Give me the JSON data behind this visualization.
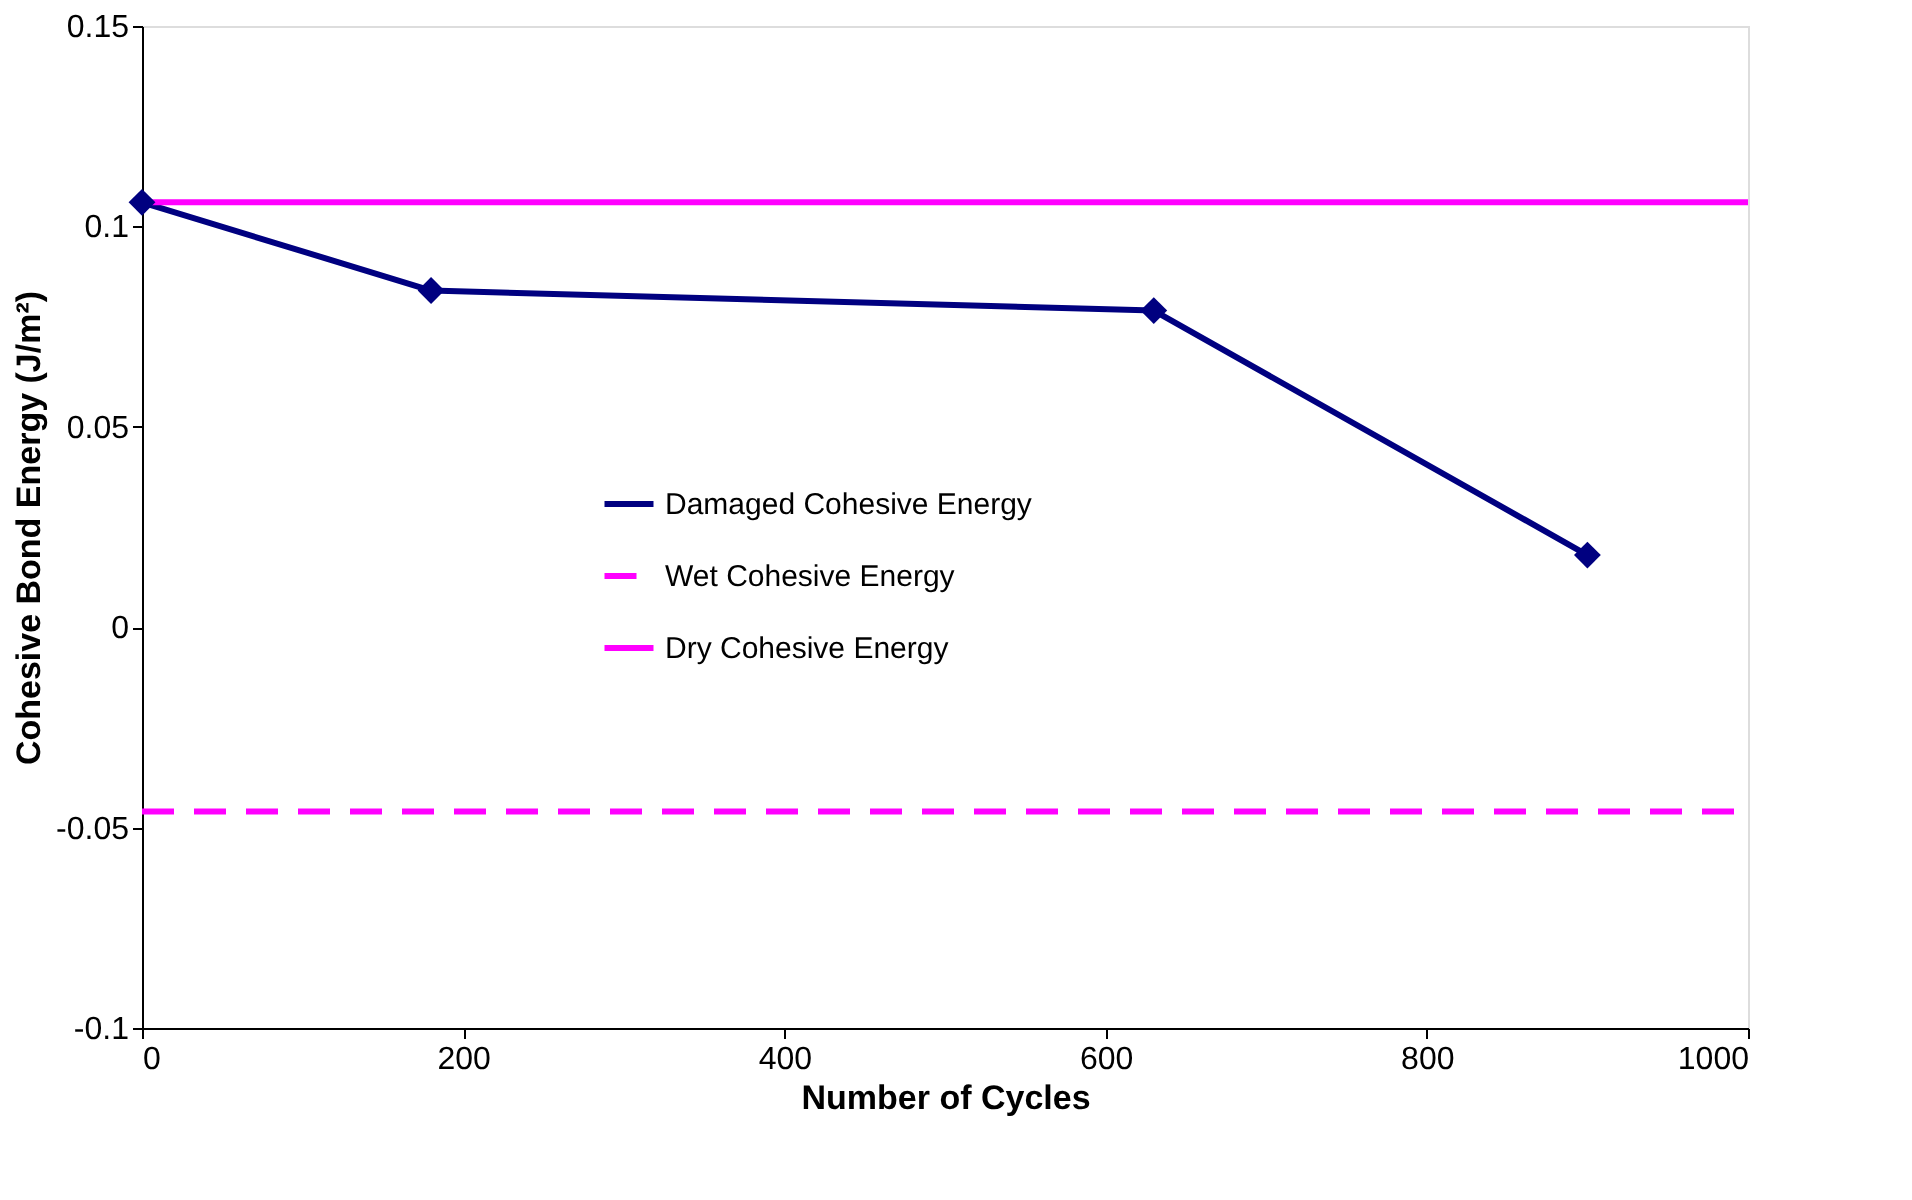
{
  "chart_data": {
    "type": "line",
    "xlabel": "Number of Cycles",
    "ylabel": "Cohesive Bond Energy (J/m²)",
    "xlim": [
      0,
      1000
    ],
    "xticks": [
      0,
      200,
      400,
      600,
      800,
      1000
    ],
    "ylim": [
      -0.1,
      0.15
    ],
    "yticks": [
      -0.1,
      -0.05,
      0,
      0.05,
      0.1,
      0.15
    ],
    "grid": false,
    "legend": "center",
    "series": [
      {
        "name": "Damaged Cohesive Energy",
        "color": "#000080",
        "x": [
          0,
          180,
          630,
          900
        ],
        "values": [
          0.106,
          0.084,
          0.079,
          0.018
        ],
        "marker": "diamond",
        "line_style": "solid"
      },
      {
        "name": "Wet Cohesive Energy",
        "color": "#ff00ff",
        "x": [
          0,
          1000
        ],
        "values": [
          -0.046,
          -0.046
        ],
        "marker": "none",
        "line_style": "dashed"
      },
      {
        "name": "Dry Cohesive Energy",
        "color": "#ff00ff",
        "x": [
          0,
          1000
        ],
        "values": [
          0.106,
          0.106
        ],
        "marker": "none",
        "line_style": "solid"
      }
    ]
  }
}
